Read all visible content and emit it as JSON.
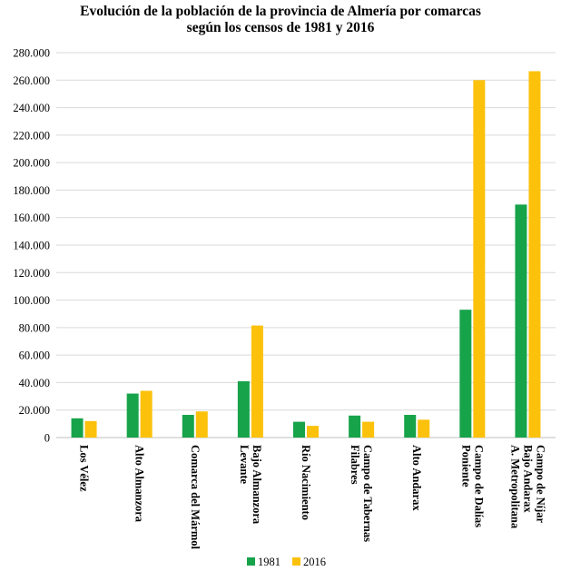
{
  "chart_data": {
    "type": "bar",
    "title_lines": [
      "Evolución de la población de la provincia de Almería por comarcas",
      "según los censos de 1981 y 2016"
    ],
    "xlabel": "",
    "ylabel": "",
    "ylim": [
      0,
      280000
    ],
    "yticks": [
      0,
      20000,
      40000,
      60000,
      80000,
      100000,
      120000,
      140000,
      160000,
      180000,
      200000,
      220000,
      240000,
      260000,
      280000
    ],
    "ytick_labels": [
      "0",
      "20.000",
      "40.000",
      "60.000",
      "80.000",
      "100.000",
      "120.000",
      "140.000",
      "160.000",
      "180.000",
      "200.000",
      "220.000",
      "240.000",
      "260.000",
      "280.000"
    ],
    "grid": true,
    "legend_position": "bottom",
    "categories": [
      [
        "Los Vélez"
      ],
      [
        "Alto Almanzora"
      ],
      [
        "Comarca del Mármol"
      ],
      [
        "Bajo Almanzora",
        "Levante"
      ],
      [
        "Río Nacimiento"
      ],
      [
        "Campo de Tabernas",
        "Filabres"
      ],
      [
        "Alto Andarax"
      ],
      [
        "Campo de Dalías",
        "Poniente"
      ],
      [
        "Campo de Níjar",
        "Bajo Andarax",
        "A. Metropolitana"
      ]
    ],
    "series": [
      {
        "name": "1981",
        "color": "#17a34a",
        "values": [
          14000,
          32000,
          16500,
          41000,
          11500,
          16000,
          16500,
          93000,
          169500
        ]
      },
      {
        "name": "2016",
        "color": "#fcc10b",
        "values": [
          12000,
          34000,
          19000,
          81500,
          8500,
          11500,
          13000,
          260000,
          266500
        ]
      }
    ]
  }
}
